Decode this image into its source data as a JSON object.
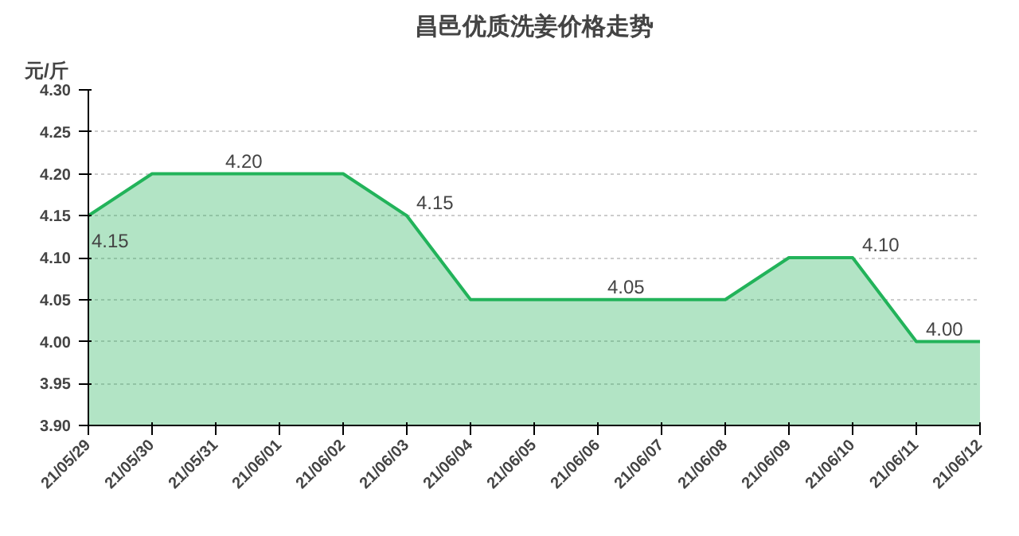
{
  "chart_data": {
    "type": "area",
    "title": "昌邑优质洗姜价格走势",
    "ylabel": "元/斤",
    "categories": [
      "21/05/29",
      "21/05/30",
      "21/05/31",
      "21/06/01",
      "21/06/02",
      "21/06/03",
      "21/06/04",
      "21/06/05",
      "21/06/06",
      "21/06/07",
      "21/06/08",
      "21/06/09",
      "21/06/10",
      "21/06/11",
      "21/06/12"
    ],
    "values": [
      4.15,
      4.2,
      4.2,
      4.2,
      4.2,
      4.15,
      4.05,
      4.05,
      4.05,
      4.05,
      4.05,
      4.1,
      4.1,
      4.0,
      4.0
    ],
    "value_labels": [
      "4.15",
      null,
      "4.20",
      null,
      null,
      "4.15",
      null,
      null,
      "4.05",
      null,
      null,
      null,
      "4.10",
      "4.00",
      null
    ],
    "color": "#22b35a",
    "ylim": [
      3.9,
      4.3
    ],
    "yticks": [
      {
        "value": 3.9,
        "label": "3.90"
      },
      3.95,
      {
        "value": 4.0,
        "label": "4.00"
      },
      4.05,
      {
        "value": 4.1,
        "label": "4.10"
      },
      4.15,
      {
        "value": 4.2,
        "label": "4.20"
      },
      4.25,
      {
        "value": 4.3,
        "label": "4.30"
      }
    ],
    "grid": "y",
    "line_style": "solid"
  }
}
